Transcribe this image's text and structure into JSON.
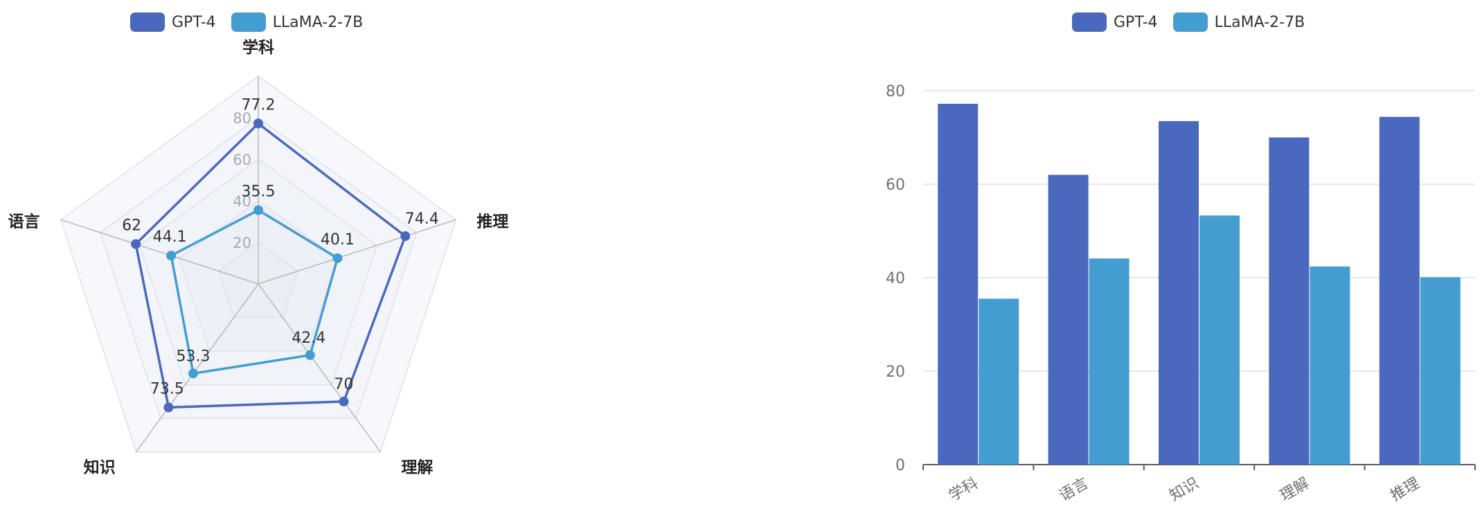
{
  "colors": {
    "gpt4": "#4a68bd",
    "llama": "#449dd1",
    "grid": "#d9dde8",
    "axis": "#5b5b5b",
    "tick": "#6e7079",
    "radar_tick": "#aaaaaa"
  },
  "chart_data": [
    {
      "type": "radar",
      "legend": [
        "GPT-4",
        "LLaMA-2-7B"
      ],
      "indicators": [
        "学科",
        "推理",
        "理解",
        "知识",
        "语言"
      ],
      "max": 100,
      "radial_ticks": [
        "20",
        "40",
        "60",
        "80"
      ],
      "series": [
        {
          "name": "GPT-4",
          "values": [
            77.2,
            74.4,
            70,
            73.5,
            62
          ]
        },
        {
          "name": "LLaMA-2-7B",
          "values": [
            35.5,
            40.1,
            42.4,
            53.3,
            44.1
          ]
        }
      ]
    },
    {
      "type": "bar",
      "legend": [
        "GPT-4",
        "LLaMA-2-7B"
      ],
      "categories": [
        "学科",
        "语言",
        "知识",
        "理解",
        "推理"
      ],
      "ylim": [
        0,
        80
      ],
      "yticks": [
        "0",
        "20",
        "40",
        "60",
        "80"
      ],
      "grid": true,
      "series": [
        {
          "name": "GPT-4",
          "values": [
            77.2,
            62,
            73.5,
            70,
            74.4
          ]
        },
        {
          "name": "LLaMA-2-7B",
          "values": [
            35.5,
            44.1,
            53.3,
            42.4,
            40.1
          ]
        }
      ]
    }
  ]
}
